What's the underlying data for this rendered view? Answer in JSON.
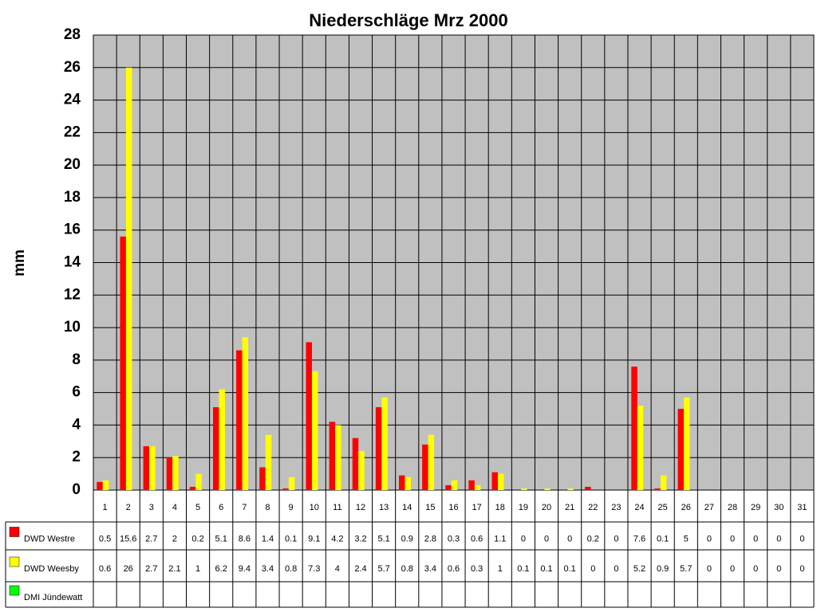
{
  "chart_data": {
    "type": "bar",
    "title": "Niederschläge Mrz 2000",
    "y_label": "mm",
    "categories": [
      "1",
      "2",
      "3",
      "4",
      "5",
      "6",
      "7",
      "8",
      "9",
      "10",
      "11",
      "12",
      "13",
      "14",
      "15",
      "16",
      "17",
      "18",
      "19",
      "20",
      "21",
      "22",
      "23",
      "24",
      "25",
      "26",
      "27",
      "28",
      "29",
      "30",
      "31"
    ],
    "series": [
      {
        "name": "DWD Westre",
        "color": "#ff0000",
        "values": [
          0.5,
          15.6,
          2.7,
          2,
          0.2,
          5.1,
          8.6,
          1.4,
          0.1,
          9.1,
          4.2,
          3.2,
          5.1,
          0.9,
          2.8,
          0.3,
          0.6,
          1.1,
          0,
          0,
          0,
          0.2,
          0,
          7.6,
          0.1,
          5,
          0,
          0,
          0,
          0,
          0
        ]
      },
      {
        "name": "DWD Weesby",
        "color": "#ffff00",
        "values": [
          0.6,
          26,
          2.7,
          2.1,
          1,
          6.2,
          9.4,
          3.4,
          0.8,
          7.3,
          4,
          2.4,
          5.7,
          0.8,
          3.4,
          0.6,
          0.3,
          1,
          0.1,
          0.1,
          0.1,
          0,
          0,
          5.2,
          0.9,
          5.7,
          0,
          0,
          0,
          0,
          0
        ]
      },
      {
        "name": "DMI Jündewatt",
        "color": "#00ff00",
        "values": [
          null,
          null,
          null,
          null,
          null,
          null,
          null,
          null,
          null,
          null,
          null,
          null,
          null,
          null,
          null,
          null,
          null,
          null,
          null,
          null,
          null,
          null,
          null,
          null,
          null,
          null,
          null,
          null,
          null,
          null,
          null
        ]
      }
    ],
    "ylim": [
      0,
      28
    ],
    "yticks": [
      0,
      2,
      4,
      6,
      8,
      10,
      12,
      14,
      16,
      18,
      20,
      22,
      24,
      26,
      28
    ],
    "grid": true,
    "plot_background": "#c0c0c0"
  }
}
